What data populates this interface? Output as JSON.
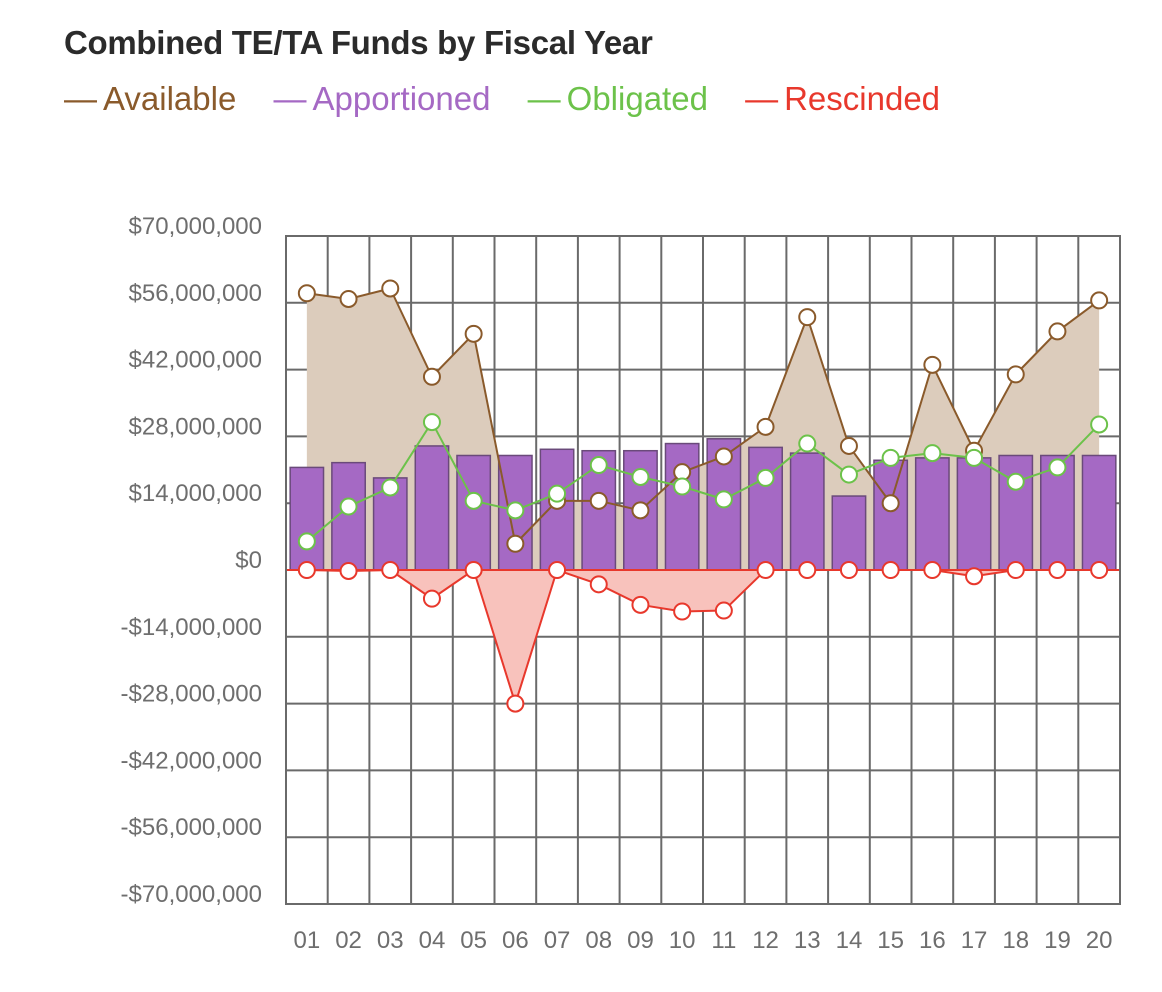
{
  "title": "Combined TE/TA Funds by Fiscal Year",
  "legend": [
    {
      "label": "Available",
      "color": "#8a5a2b"
    },
    {
      "label": "Apportioned",
      "color": "#a569c4"
    },
    {
      "label": "Obligated",
      "color": "#6cc24a"
    },
    {
      "label": "Rescinded",
      "color": "#e8382c"
    }
  ],
  "chart_data": {
    "type": "bar",
    "title": "Combined TE/TA Funds by Fiscal Year",
    "categories": [
      "01",
      "02",
      "03",
      "04",
      "05",
      "06",
      "07",
      "08",
      "09",
      "10",
      "11",
      "12",
      "13",
      "14",
      "15",
      "16",
      "17",
      "18",
      "19",
      "20"
    ],
    "ylim": [
      -70000000,
      70000000
    ],
    "y_ticks": [
      70000000,
      56000000,
      42000000,
      28000000,
      14000000,
      0,
      -14000000,
      -28000000,
      -42000000,
      -56000000,
      -70000000
    ],
    "y_tick_labels": [
      "$70,000,000",
      "$56,000,000",
      "$42,000,000",
      "$28,000,000",
      "$14,000,000",
      "$0",
      "-$14,000,000",
      "-$28,000,000",
      "-$42,000,000",
      "-$56,000,000",
      "-$70,000,000"
    ],
    "grid": true,
    "legend_position": "top-left",
    "series": [
      {
        "name": "Apportioned",
        "type": "bar",
        "color": "#a569c4",
        "values": [
          21500000,
          22500000,
          19300000,
          26000000,
          24000000,
          24000000,
          25300000,
          25000000,
          25000000,
          26500000,
          27500000,
          25700000,
          24500000,
          15500000,
          23000000,
          23500000,
          23500000,
          24000000,
          24000000,
          24000000
        ]
      },
      {
        "name": "Available",
        "type": "area-line",
        "color": "#8a5a2b",
        "fill": "#dcccbc",
        "values": [
          58000000,
          56800000,
          59000000,
          40500000,
          49500000,
          5500000,
          14500000,
          14500000,
          12500000,
          20500000,
          23800000,
          30000000,
          53000000,
          26000000,
          14000000,
          43000000,
          25000000,
          41000000,
          50000000,
          56500000
        ]
      },
      {
        "name": "Obligated",
        "type": "line",
        "color": "#6cc24a",
        "values": [
          6000000,
          13300000,
          17300000,
          31000000,
          14500000,
          12500000,
          16000000,
          22000000,
          19500000,
          17500000,
          14800000,
          19300000,
          26500000,
          20000000,
          23500000,
          24500000,
          23500000,
          18500000,
          21500000,
          30500000
        ]
      },
      {
        "name": "Rescinded",
        "type": "area-line",
        "color": "#e8382c",
        "fill": "#f8c2bc",
        "values": [
          0,
          -200000,
          0,
          -6000000,
          0,
          -28000000,
          0,
          -3000000,
          -7300000,
          -8700000,
          -8500000,
          0,
          0,
          0,
          0,
          0,
          -1300000,
          0,
          0,
          0
        ]
      }
    ]
  }
}
